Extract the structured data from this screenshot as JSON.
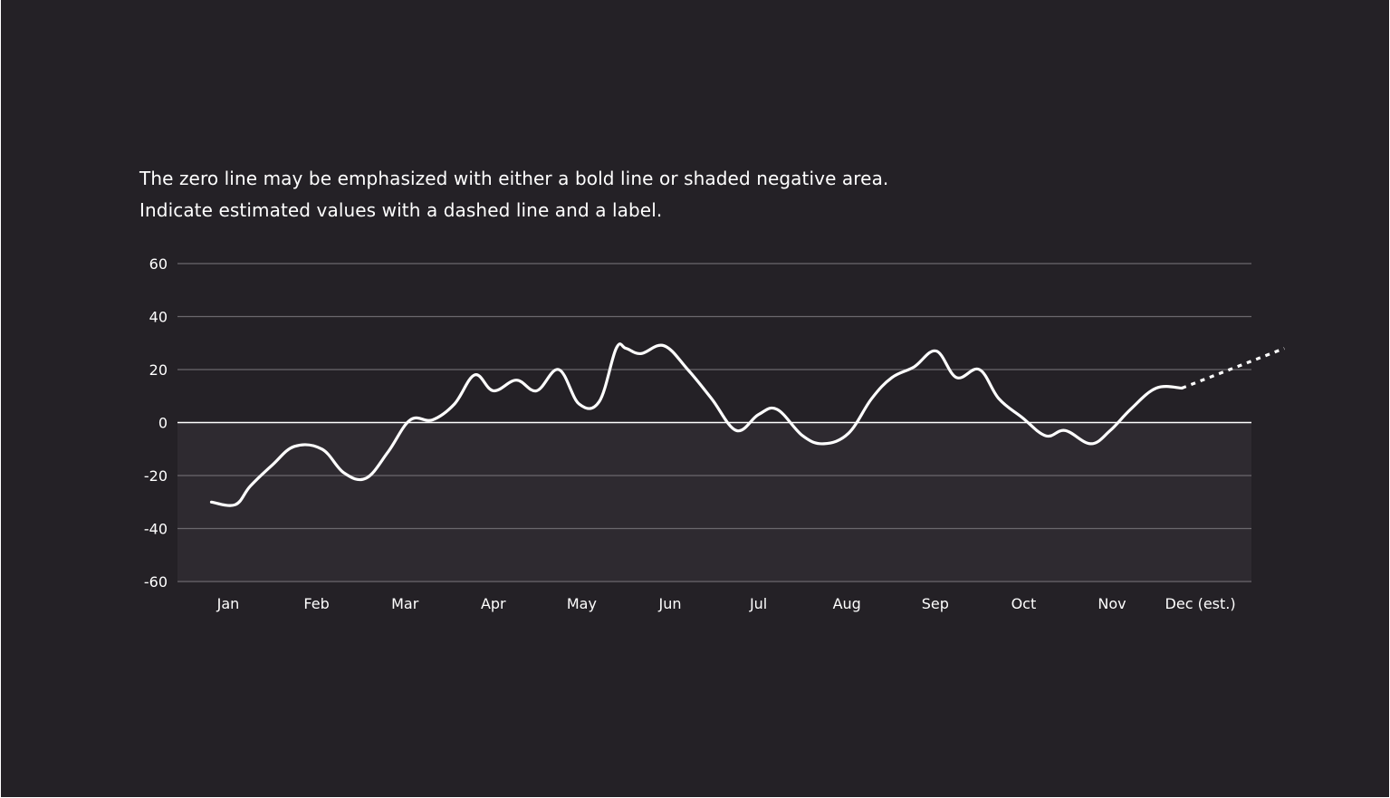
{
  "description": "The zero line may be emphasized with either a bold line or shaded negative area. Indicate estimated values with a dashed line and a label.",
  "colors": {
    "background": "#242126",
    "negative_area": "#2e2a30",
    "gridline": "#6b686d",
    "zero_line": "#ffffff",
    "series_line": "#ffffff",
    "text": "#ffffff"
  },
  "chart_data": {
    "type": "line",
    "title": "",
    "xlabel": "",
    "ylabel": "",
    "ylim": [
      -60,
      60
    ],
    "y_ticks": [
      "60",
      "40",
      "20",
      "0",
      "-20",
      "-40",
      "-60"
    ],
    "categories": [
      "Jan",
      "Feb",
      "Mar",
      "Apr",
      "May",
      "Jun",
      "Jul",
      "Aug",
      "Sep",
      "Oct",
      "Nov",
      "Dec (est.)"
    ],
    "grid": true,
    "negative_area_shaded": true,
    "series": [
      {
        "style": "solid",
        "x": [
          -0.19,
          0.08,
          0.25,
          0.5,
          0.75,
          1.06,
          1.31,
          1.56,
          1.81,
          2.06,
          2.31,
          2.56,
          2.79,
          3.0,
          3.26,
          3.49,
          3.74,
          3.97,
          4.2,
          4.39,
          4.5,
          4.67,
          4.93,
          5.2,
          5.47,
          5.75,
          6.0,
          6.21,
          6.5,
          6.74,
          7.02,
          7.28,
          7.51,
          7.76,
          8.01,
          8.24,
          8.5,
          8.72,
          8.98,
          9.25,
          9.47,
          9.76,
          9.98,
          10.21,
          10.5,
          10.79
        ],
        "y": [
          -30,
          -31,
          -24,
          -16,
          -9,
          -10,
          -19,
          -21,
          -11,
          1,
          1,
          7,
          18,
          12,
          16,
          12,
          20,
          7,
          8,
          28,
          28,
          26,
          29,
          20,
          9,
          -3,
          3,
          5,
          -5,
          -8,
          -4,
          9,
          17,
          21,
          27,
          17,
          20,
          9,
          2,
          -5,
          -3,
          -8,
          -3,
          5,
          13,
          13
        ]
      },
      {
        "style": "dashed",
        "label": "Dec (est.)",
        "x": [
          10.79,
          11.95
        ],
        "y": [
          13,
          28
        ]
      }
    ]
  }
}
